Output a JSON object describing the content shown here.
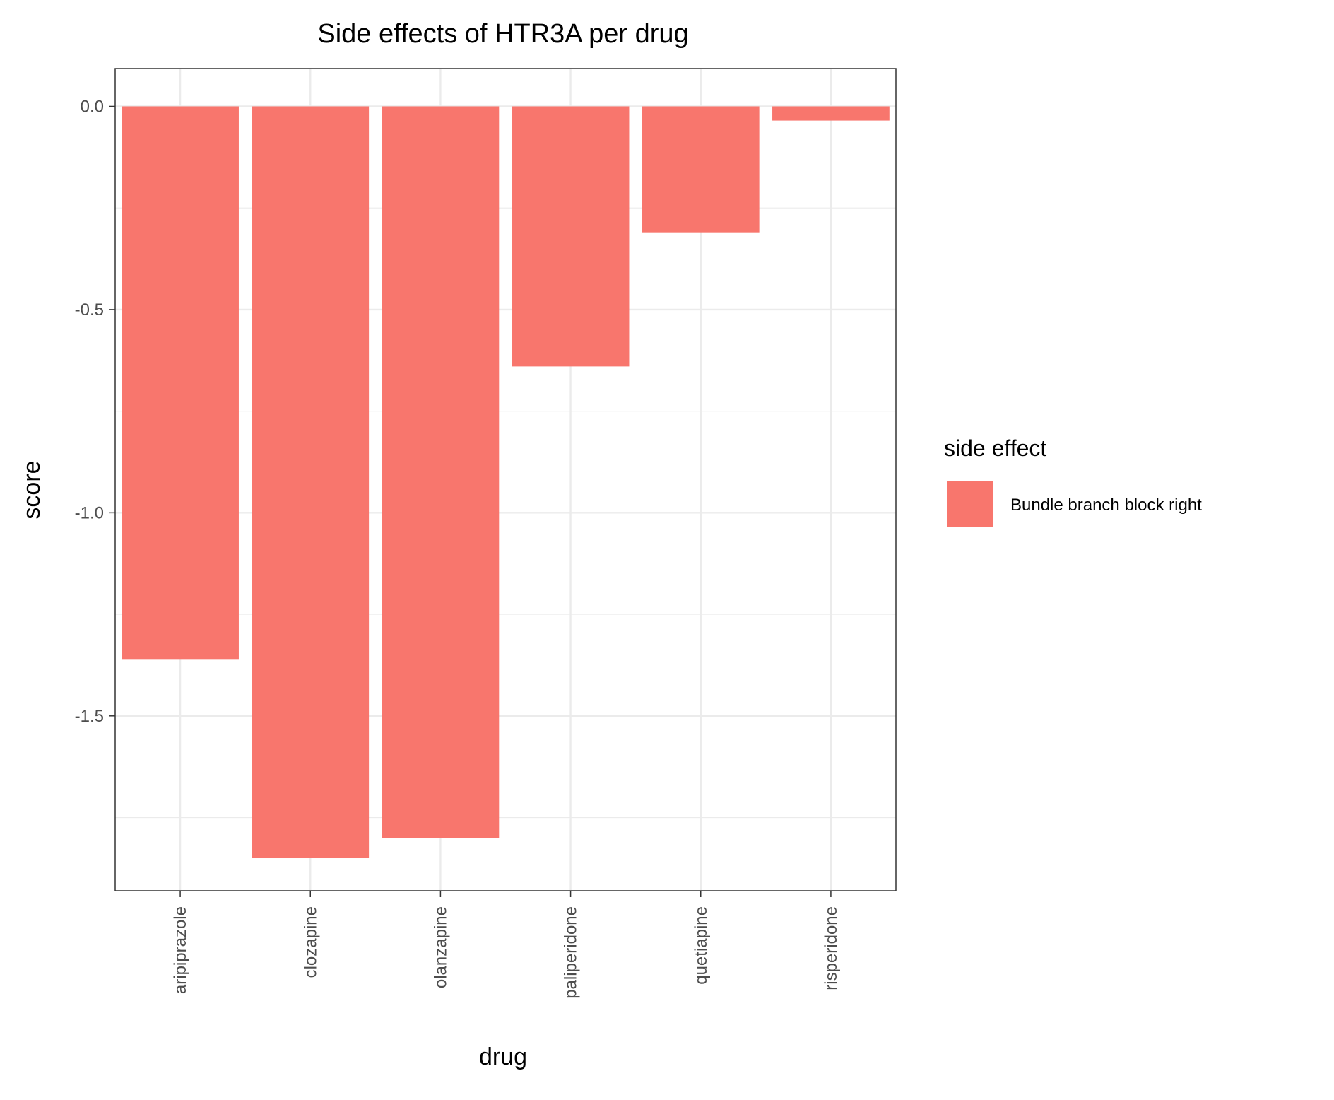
{
  "chart_data": {
    "type": "bar",
    "title": "Side effects of HTR3A per drug",
    "xlabel": "drug",
    "ylabel": "score",
    "categories": [
      "aripiprazole",
      "clozapine",
      "olanzapine",
      "paliperidone",
      "quetiapine",
      "risperidone"
    ],
    "series": [
      {
        "name": "Bundle branch block right",
        "values": [
          -1.36,
          -1.85,
          -1.8,
          -0.64,
          -0.31,
          -0.035
        ],
        "color": "#F8766D"
      }
    ],
    "ylim": [
      -1.93,
      0.093
    ],
    "yticks": [
      0.0,
      -0.5,
      -1.0,
      -1.5
    ],
    "ytick_labels": [
      "0.0",
      "-0.5",
      "-1.0",
      "-1.5"
    ],
    "grid": true,
    "legend": {
      "title": "side effect",
      "position": "right"
    }
  }
}
